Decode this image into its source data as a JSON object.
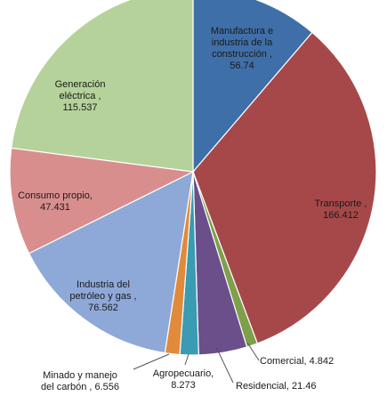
{
  "chart_data": {
    "type": "pie",
    "title": "",
    "legend": "none",
    "slices": [
      {
        "label": [
          "Manufactura e",
          "industria de la",
          "construcción ,",
          "56.74"
        ],
        "value": 56.74,
        "color": "#3f6fa8"
      },
      {
        "label": [
          "Transporte ,",
          "166.412"
        ],
        "value": 166.412,
        "color": "#a6484a"
      },
      {
        "label": [
          "Comercial, 4.842"
        ],
        "value": 4.842,
        "color": "#7fa04a"
      },
      {
        "label": [
          "Residencial, 21.46"
        ],
        "value": 21.46,
        "color": "#6a4f8a"
      },
      {
        "label": [
          "Agropecuario,",
          "8.273"
        ],
        "value": 8.273,
        "color": "#3a9bb3"
      },
      {
        "label": [
          "Minado y manejo",
          "del carbón , 6.556"
        ],
        "value": 6.556,
        "color": "#e08a3c"
      },
      {
        "label": [
          "Industria del",
          "petróleo y gas ,",
          "76.562"
        ],
        "value": 76.562,
        "color": "#8ea9d8"
      },
      {
        "label": [
          "Consumo propio,",
          "47.431"
        ],
        "value": 47.431,
        "color": "#d98e8e"
      },
      {
        "label": [
          "Generación",
          "eléctrica ,",
          "115.537"
        ],
        "value": 115.537,
        "color": "#b5d29a"
      }
    ]
  }
}
